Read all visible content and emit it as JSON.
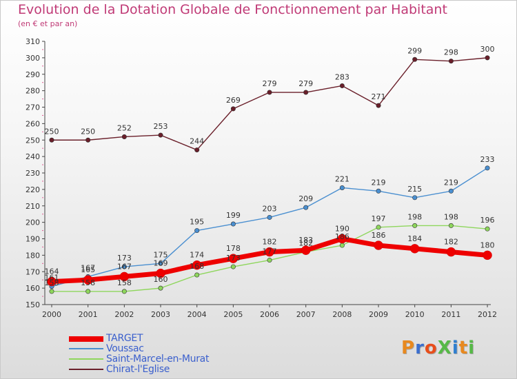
{
  "header": {
    "title": "Evolution de la Dotation Globale de Fonctionnement par Habitant",
    "subtitle": "(en € et par an)"
  },
  "logo": {
    "text": "ProXiti",
    "colors": [
      "#e8891f",
      "#3b6fcf",
      "#e84e1b",
      "#56b947",
      "#2f7fcf",
      "#e8891f",
      "#56b947"
    ]
  },
  "chart_data": {
    "type": "line",
    "x": [
      "2000",
      "2001",
      "2002",
      "2003",
      "2004",
      "2005",
      "2006",
      "2007",
      "2008",
      "2009",
      "2010",
      "2011",
      "2012"
    ],
    "ylim": [
      150,
      310
    ],
    "yticks": [
      150,
      160,
      170,
      180,
      190,
      200,
      210,
      220,
      230,
      240,
      250,
      260,
      270,
      280,
      290,
      300,
      310
    ],
    "grid": false,
    "legend_position": "bottom-left",
    "series": [
      {
        "name": "Chirat-l'Eglise",
        "color": "#6a1f2a",
        "values": [
          250,
          250,
          252,
          253,
          244,
          269,
          279,
          279,
          283,
          271,
          299,
          298,
          300
        ],
        "labels": [
          "250",
          "250",
          "252",
          "253",
          "244",
          "269",
          "279",
          "279",
          "283",
          "271",
          "299",
          "298",
          "300"
        ]
      },
      {
        "name": "Voussac",
        "color": "#4a8fd0",
        "values": [
          161,
          167,
          173,
          175,
          195,
          199,
          203,
          209,
          221,
          219,
          215,
          219,
          233
        ],
        "labels": [
          "161",
          "167",
          "173",
          "175",
          "195",
          "199",
          "203",
          "209",
          "221",
          "219",
          "215",
          "219",
          "233"
        ]
      },
      {
        "name": "Saint-Marcel-en-Murat",
        "color": "#8ed65c",
        "values": [
          158,
          158,
          158,
          160,
          168,
          173,
          177,
          182,
          186,
          197,
          198,
          198,
          196
        ],
        "labels": [
          "158",
          "158",
          "158",
          "160",
          "168",
          "173",
          "177",
          "182",
          "186",
          "197",
          "198",
          "198",
          "196"
        ]
      },
      {
        "name": "TARGET",
        "color": "#ee0000",
        "values": [
          164,
          165,
          167,
          169,
          174,
          178,
          182,
          183,
          190,
          186,
          184,
          182,
          180
        ],
        "labels": [
          "164",
          "165",
          "167",
          "169",
          "174",
          "178",
          "182",
          "183",
          "190",
          "186",
          "184",
          "182",
          "180"
        ]
      }
    ]
  }
}
